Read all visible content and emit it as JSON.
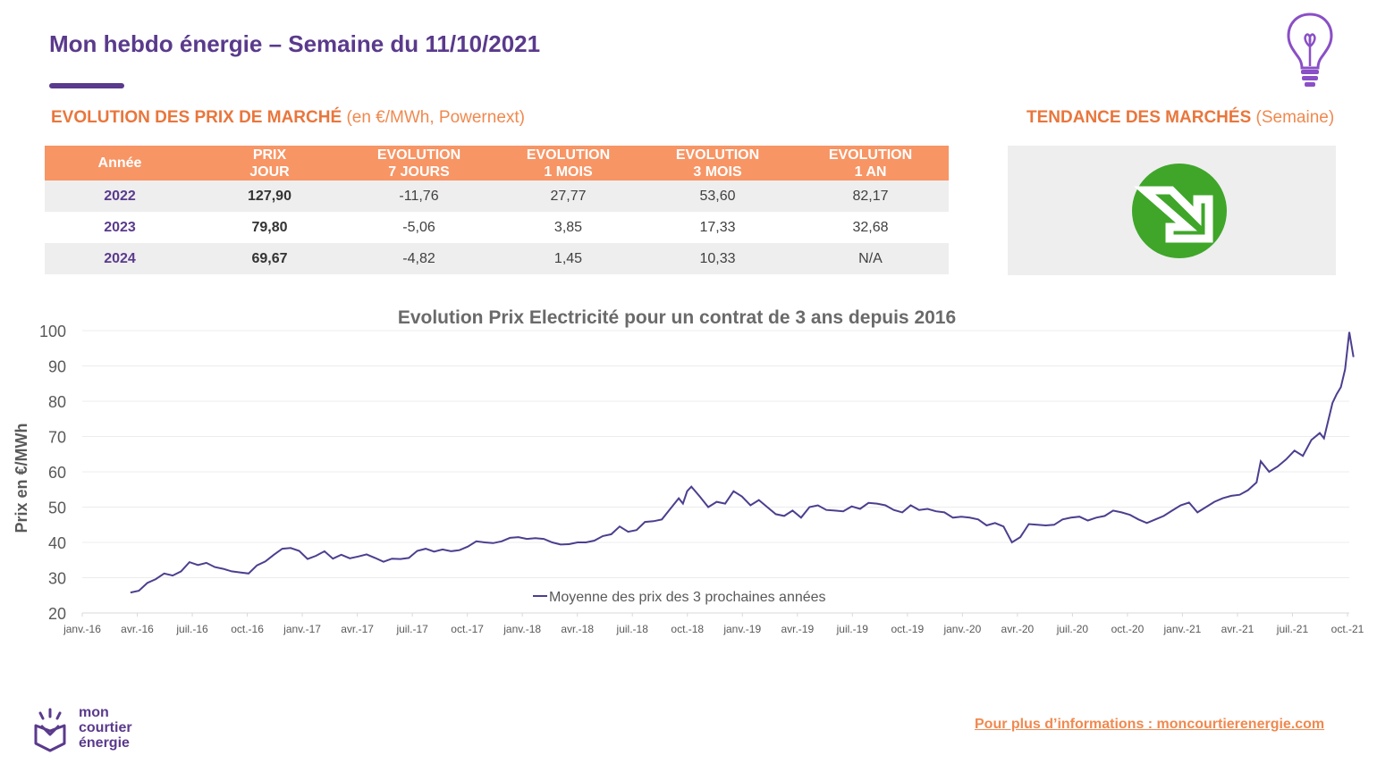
{
  "header": {
    "title": "Mon hebdo énergie – Semaine du 11/10/2021"
  },
  "market_section": {
    "heading": "EVOLUTION DES PRIX DE MARCHÉ",
    "subheading": "(en €/MWh, Powernext)"
  },
  "trend_section": {
    "heading": "TENDANCE DES MARCHÉS",
    "subheading": "(Semaine)",
    "icon": "arrow-down-right-icon",
    "icon_color": "#3fa62a"
  },
  "price_table": {
    "columns": [
      {
        "line1": "Année",
        "line2": ""
      },
      {
        "line1": "PRIX",
        "line2": "JOUR"
      },
      {
        "line1": "EVOLUTION",
        "line2": "7 JOURS"
      },
      {
        "line1": "EVOLUTION",
        "line2": "1 MOIS"
      },
      {
        "line1": "EVOLUTION",
        "line2": "3 MOIS"
      },
      {
        "line1": "EVOLUTION",
        "line2": "1 AN"
      }
    ],
    "rows": [
      {
        "year": "2022",
        "price": "127,90",
        "ev7d": "-11,76",
        "ev1m": "27,77",
        "ev3m": "53,60",
        "ev1y": "82,17"
      },
      {
        "year": "2023",
        "price": "79,80",
        "ev7d": "-5,06",
        "ev1m": "3,85",
        "ev3m": "17,33",
        "ev1y": "32,68"
      },
      {
        "year": "2024",
        "price": "69,67",
        "ev7d": "-4,82",
        "ev1m": "1,45",
        "ev3m": "10,33",
        "ev1y": "N/A"
      }
    ]
  },
  "chart_data": {
    "type": "line",
    "title": "Evolution Prix Electricité pour un contrat de 3 ans depuis 2016",
    "ylabel": "Prix en €/MWh",
    "xlabel": "",
    "ylim": [
      20,
      100
    ],
    "yticks": [
      20,
      30,
      40,
      50,
      60,
      70,
      80,
      90,
      100
    ],
    "xticks": [
      "janv.-16",
      "avr.-16",
      "juil.-16",
      "oct.-16",
      "janv.-17",
      "avr.-17",
      "juil.-17",
      "oct.-17",
      "janv.-18",
      "avr.-18",
      "juil.-18",
      "oct.-18",
      "janv.-19",
      "avr.-19",
      "juil.-19",
      "oct.-19",
      "janv.-20",
      "avr.-20",
      "juil.-20",
      "oct.-20",
      "janv.-21",
      "avr.-21",
      "juil.-21",
      "oct.-21"
    ],
    "grid": true,
    "legend_position": "bottom-center",
    "color": "#4b3f8f",
    "series": [
      {
        "name": "Moyenne des prix des 3 prochaines années",
        "points": [
          [
            "2016-03-21",
            25.8
          ],
          [
            "2016-04-04",
            26.3
          ],
          [
            "2016-04-18",
            28.5
          ],
          [
            "2016-05-02",
            29.6
          ],
          [
            "2016-05-16",
            31.2
          ],
          [
            "2016-05-30",
            30.6
          ],
          [
            "2016-06-13",
            31.8
          ],
          [
            "2016-06-27",
            34.4
          ],
          [
            "2016-07-11",
            33.6
          ],
          [
            "2016-07-25",
            34.2
          ],
          [
            "2016-08-08",
            33.0
          ],
          [
            "2016-08-22",
            32.5
          ],
          [
            "2016-09-05",
            31.8
          ],
          [
            "2016-09-19",
            31.5
          ],
          [
            "2016-10-03",
            31.2
          ],
          [
            "2016-10-17",
            33.5
          ],
          [
            "2016-10-31",
            34.6
          ],
          [
            "2016-11-14",
            36.5
          ],
          [
            "2016-11-28",
            38.2
          ],
          [
            "2016-12-12",
            38.4
          ],
          [
            "2016-12-26",
            37.6
          ],
          [
            "2017-01-09",
            35.3
          ],
          [
            "2017-01-23",
            36.2
          ],
          [
            "2017-02-06",
            37.5
          ],
          [
            "2017-02-20",
            35.4
          ],
          [
            "2017-03-06",
            36.5
          ],
          [
            "2017-03-20",
            35.5
          ],
          [
            "2017-04-03",
            36.0
          ],
          [
            "2017-04-17",
            36.6
          ],
          [
            "2017-05-01",
            35.6
          ],
          [
            "2017-05-15",
            34.5
          ],
          [
            "2017-05-29",
            35.4
          ],
          [
            "2017-06-12",
            35.3
          ],
          [
            "2017-06-26",
            35.6
          ],
          [
            "2017-07-10",
            37.6
          ],
          [
            "2017-07-24",
            38.2
          ],
          [
            "2017-08-07",
            37.4
          ],
          [
            "2017-08-21",
            38.0
          ],
          [
            "2017-09-04",
            37.5
          ],
          [
            "2017-09-18",
            37.8
          ],
          [
            "2017-10-02",
            38.8
          ],
          [
            "2017-10-16",
            40.3
          ],
          [
            "2017-10-30",
            40.0
          ],
          [
            "2017-11-13",
            39.8
          ],
          [
            "2017-11-27",
            40.3
          ],
          [
            "2017-12-11",
            41.3
          ],
          [
            "2017-12-25",
            41.5
          ],
          [
            "2018-01-08",
            41.0
          ],
          [
            "2018-01-22",
            41.2
          ],
          [
            "2018-02-05",
            41.0
          ],
          [
            "2018-02-19",
            40.0
          ],
          [
            "2018-03-05",
            39.4
          ],
          [
            "2018-03-19",
            39.5
          ],
          [
            "2018-04-02",
            40.0
          ],
          [
            "2018-04-16",
            40.0
          ],
          [
            "2018-04-30",
            40.5
          ],
          [
            "2018-05-14",
            41.8
          ],
          [
            "2018-05-28",
            42.3
          ],
          [
            "2018-06-11",
            44.5
          ],
          [
            "2018-06-25",
            43.0
          ],
          [
            "2018-07-09",
            43.5
          ],
          [
            "2018-07-23",
            45.8
          ],
          [
            "2018-08-06",
            46.0
          ],
          [
            "2018-08-20",
            46.5
          ],
          [
            "2018-09-03",
            49.5
          ],
          [
            "2018-09-17",
            52.5
          ],
          [
            "2018-09-24",
            51.0
          ],
          [
            "2018-10-01",
            54.5
          ],
          [
            "2018-10-08",
            55.8
          ],
          [
            "2018-10-22",
            53.0
          ],
          [
            "2018-11-05",
            50.0
          ],
          [
            "2018-11-19",
            51.5
          ],
          [
            "2018-12-03",
            51.0
          ],
          [
            "2018-12-17",
            54.5
          ],
          [
            "2018-12-31",
            53.0
          ],
          [
            "2019-01-14",
            50.5
          ],
          [
            "2019-01-28",
            52.0
          ],
          [
            "2019-02-11",
            50.0
          ],
          [
            "2019-02-25",
            48.0
          ],
          [
            "2019-03-11",
            47.5
          ],
          [
            "2019-03-25",
            49.0
          ],
          [
            "2019-04-08",
            47.0
          ],
          [
            "2019-04-22",
            50.0
          ],
          [
            "2019-05-06",
            50.5
          ],
          [
            "2019-05-20",
            49.2
          ],
          [
            "2019-06-03",
            49.0
          ],
          [
            "2019-06-17",
            48.8
          ],
          [
            "2019-07-01",
            50.2
          ],
          [
            "2019-07-15",
            49.5
          ],
          [
            "2019-07-29",
            51.2
          ],
          [
            "2019-08-12",
            51.0
          ],
          [
            "2019-08-26",
            50.5
          ],
          [
            "2019-09-09",
            49.2
          ],
          [
            "2019-09-23",
            48.5
          ],
          [
            "2019-10-07",
            50.5
          ],
          [
            "2019-10-21",
            49.2
          ],
          [
            "2019-11-04",
            49.5
          ],
          [
            "2019-11-18",
            48.8
          ],
          [
            "2019-12-02",
            48.5
          ],
          [
            "2019-12-16",
            47.0
          ],
          [
            "2019-12-30",
            47.3
          ],
          [
            "2020-01-13",
            47.0
          ],
          [
            "2020-01-27",
            46.5
          ],
          [
            "2020-02-10",
            44.8
          ],
          [
            "2020-02-24",
            45.5
          ],
          [
            "2020-03-09",
            44.5
          ],
          [
            "2020-03-23",
            40.0
          ],
          [
            "2020-04-06",
            41.5
          ],
          [
            "2020-04-20",
            45.2
          ],
          [
            "2020-05-04",
            45.0
          ],
          [
            "2020-05-18",
            44.8
          ],
          [
            "2020-06-01",
            45.0
          ],
          [
            "2020-06-15",
            46.5
          ],
          [
            "2020-06-29",
            47.0
          ],
          [
            "2020-07-13",
            47.3
          ],
          [
            "2020-07-27",
            46.2
          ],
          [
            "2020-08-10",
            47.0
          ],
          [
            "2020-08-24",
            47.5
          ],
          [
            "2020-09-07",
            49.0
          ],
          [
            "2020-09-21",
            48.5
          ],
          [
            "2020-10-05",
            47.8
          ],
          [
            "2020-10-19",
            46.5
          ],
          [
            "2020-11-02",
            45.5
          ],
          [
            "2020-11-16",
            46.5
          ],
          [
            "2020-11-30",
            47.5
          ],
          [
            "2020-12-14",
            49.0
          ],
          [
            "2020-12-28",
            50.5
          ],
          [
            "2021-01-11",
            51.3
          ],
          [
            "2021-01-25",
            48.5
          ],
          [
            "2021-02-08",
            50.0
          ],
          [
            "2021-02-22",
            51.5
          ],
          [
            "2021-03-08",
            52.5
          ],
          [
            "2021-03-22",
            53.2
          ],
          [
            "2021-04-05",
            53.5
          ],
          [
            "2021-04-19",
            54.8
          ],
          [
            "2021-05-03",
            57.0
          ],
          [
            "2021-05-10",
            63.0
          ],
          [
            "2021-05-24",
            60.0
          ],
          [
            "2021-06-07",
            61.5
          ],
          [
            "2021-06-21",
            63.5
          ],
          [
            "2021-07-05",
            66.0
          ],
          [
            "2021-07-19",
            64.5
          ],
          [
            "2021-08-02",
            69.0
          ],
          [
            "2021-08-16",
            71.0
          ],
          [
            "2021-08-23",
            69.5
          ],
          [
            "2021-09-06",
            79.5
          ],
          [
            "2021-09-13",
            82.0
          ],
          [
            "2021-09-20",
            84.0
          ],
          [
            "2021-09-27",
            89.0
          ],
          [
            "2021-10-04",
            99.6
          ],
          [
            "2021-10-11",
            92.5
          ]
        ]
      }
    ]
  },
  "footer": {
    "logo_line1": "mon",
    "logo_line2": "courtier",
    "logo_line3": "énergie",
    "link_text": "Pour plus d’informations : moncourtierenergie.com"
  }
}
